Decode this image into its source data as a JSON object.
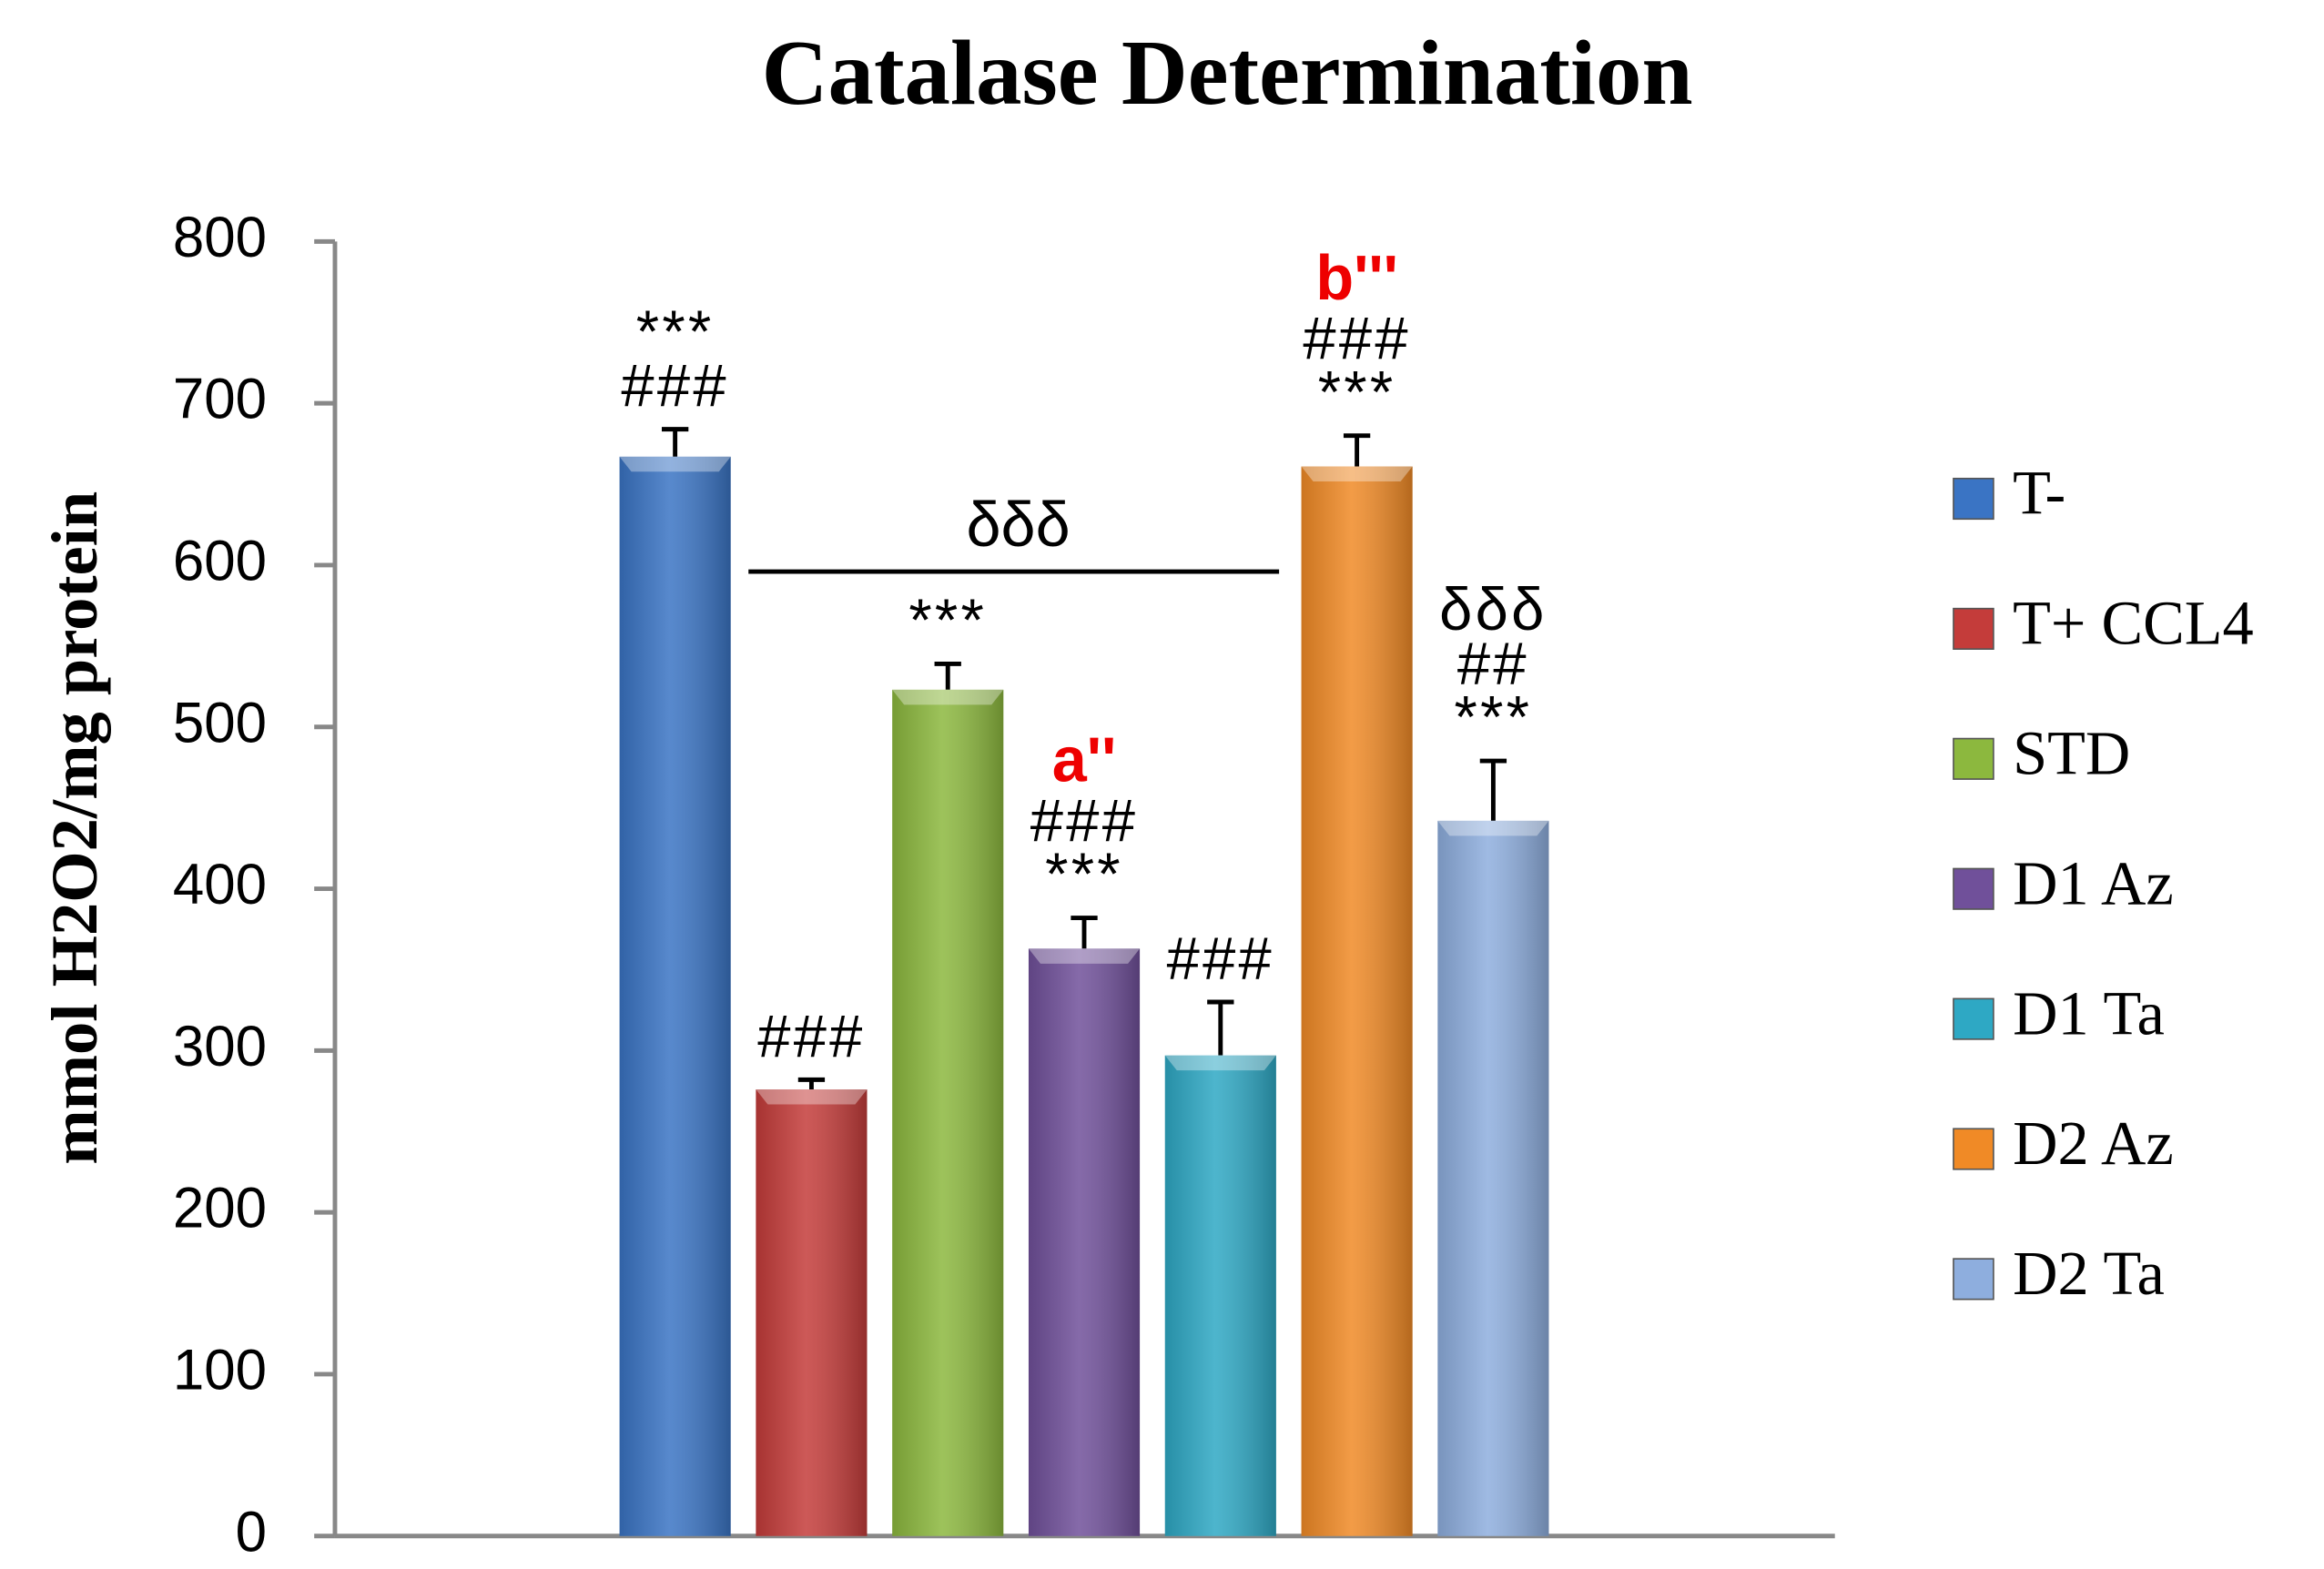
{
  "chart_data": {
    "type": "bar",
    "title": "Catalase Determination",
    "y_label": "mmol H2O2/mg protein",
    "categories": [
      null
    ],
    "ylim": [
      0,
      800
    ],
    "yticks": [
      0,
      100,
      200,
      300,
      400,
      500,
      600,
      700,
      800
    ],
    "legend": "right",
    "highlight_color": "#ee0000",
    "series": [
      {
        "name": "T-",
        "color": "#3a74c4",
        "values": [
          667
        ],
        "errors": [
          17
        ],
        "labels": [
          "***",
          "###"
        ]
      },
      {
        "name": "T+ CCL4",
        "color": "#c43c3a",
        "values": [
          276
        ],
        "errors": [
          6
        ],
        "labels": [
          "###"
        ]
      },
      {
        "name": "STD",
        "color": "#8cb83e",
        "values": [
          523
        ],
        "errors": [
          16
        ],
        "labels": [
          "***"
        ]
      },
      {
        "name": "D1 Az",
        "color": "#70509a",
        "values": [
          363
        ],
        "errors": [
          19
        ],
        "highlight": "a''",
        "labels": [
          "###",
          "***"
        ]
      },
      {
        "name": "D1 Ta",
        "color": "#2ea8c4",
        "values": [
          297
        ],
        "errors": [
          33
        ],
        "labels": [
          "###"
        ]
      },
      {
        "name": "D2 Az",
        "color": "#f08a26",
        "values": [
          661
        ],
        "errors": [
          19
        ],
        "highlight": "b'''",
        "labels": [
          "###",
          "***"
        ]
      },
      {
        "name": "D2 Ta",
        "color": "#8eaede",
        "values": [
          442
        ],
        "errors": [
          37
        ],
        "labels": [
          "δδδ",
          "##",
          "***"
        ]
      }
    ],
    "bracket": {
      "label": "δδδ",
      "y": 596
    }
  }
}
